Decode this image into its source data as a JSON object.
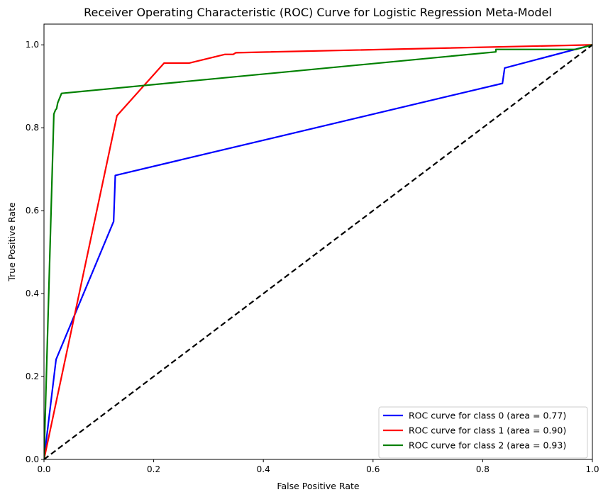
{
  "chart_data": {
    "type": "line",
    "title": "Receiver Operating Characteristic (ROC) Curve for Logistic Regression Meta-Model",
    "xlabel": "False Positive Rate",
    "ylabel": "True Positive Rate",
    "xlim": [
      0.0,
      1.0
    ],
    "ylim": [
      0.0,
      1.05
    ],
    "xticks": [
      "0.0",
      "0.2",
      "0.4",
      "0.6",
      "0.8",
      "1.0"
    ],
    "yticks": [
      "0.0",
      "0.2",
      "0.4",
      "0.6",
      "0.8",
      "1.0"
    ],
    "grid": false,
    "legend_position": "lower-right",
    "series": [
      {
        "name": "ROC curve for class 0 (area = 0.77)",
        "color": "#0000ff",
        "points": [
          [
            0.0,
            0.0
          ],
          [
            0.022,
            0.241
          ],
          [
            0.127,
            0.574
          ],
          [
            0.13,
            0.685
          ],
          [
            0.836,
            0.907
          ],
          [
            0.84,
            0.944
          ],
          [
            1.0,
            1.0
          ]
        ]
      },
      {
        "name": "ROC curve for class 1 (area = 0.90)",
        "color": "#ff0000",
        "points": [
          [
            0.0,
            0.0
          ],
          [
            0.133,
            0.829
          ],
          [
            0.219,
            0.956
          ],
          [
            0.265,
            0.956
          ],
          [
            0.33,
            0.977
          ],
          [
            0.345,
            0.977
          ],
          [
            0.35,
            0.981
          ],
          [
            1.0,
            1.0
          ]
        ]
      },
      {
        "name": "ROC curve for class 2 (area = 0.93)",
        "color": "#008000",
        "points": [
          [
            0.0,
            0.0
          ],
          [
            0.018,
            0.833
          ],
          [
            0.021,
            0.843
          ],
          [
            0.023,
            0.846
          ],
          [
            0.025,
            0.86
          ],
          [
            0.032,
            0.883
          ],
          [
            0.824,
            0.983
          ],
          [
            0.824,
            0.989
          ],
          [
            0.97,
            0.989
          ],
          [
            1.0,
            1.0
          ]
        ]
      },
      {
        "name": "",
        "color": "#000000",
        "dashed": true,
        "points": [
          [
            0.0,
            0.0
          ],
          [
            1.0,
            1.0
          ]
        ]
      }
    ]
  }
}
